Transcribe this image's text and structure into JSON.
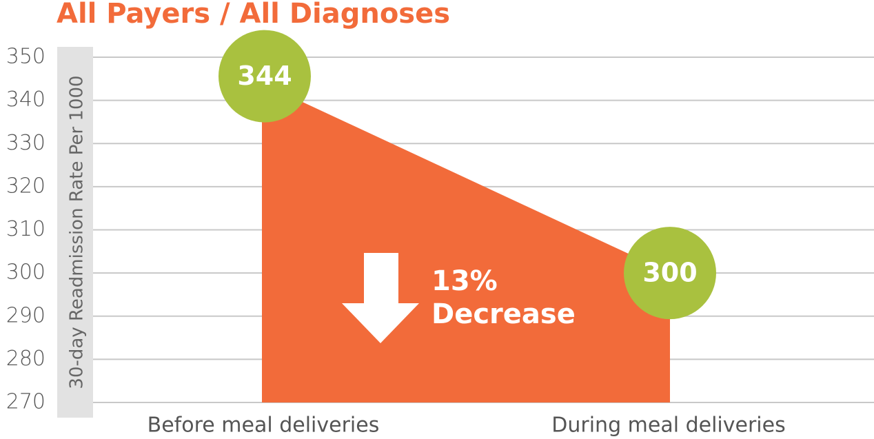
{
  "chart_data": {
    "type": "area",
    "title": "All Payers / All Diagnoses",
    "ylabel": "30-day Readmission Rate Per 1000",
    "categories": [
      "Before meal deliveries",
      "During meal deliveries"
    ],
    "values": [
      344,
      300
    ],
    "color": "#f26b3a",
    "marker_color": "#a9c13f",
    "title_color": "#f26b3a",
    "annotation": [
      "13%",
      "Decrease"
    ],
    "ylim": [
      270,
      350
    ],
    "yticks": [
      270,
      280,
      290,
      300,
      310,
      320,
      330,
      340,
      350
    ],
    "grid": true
  }
}
